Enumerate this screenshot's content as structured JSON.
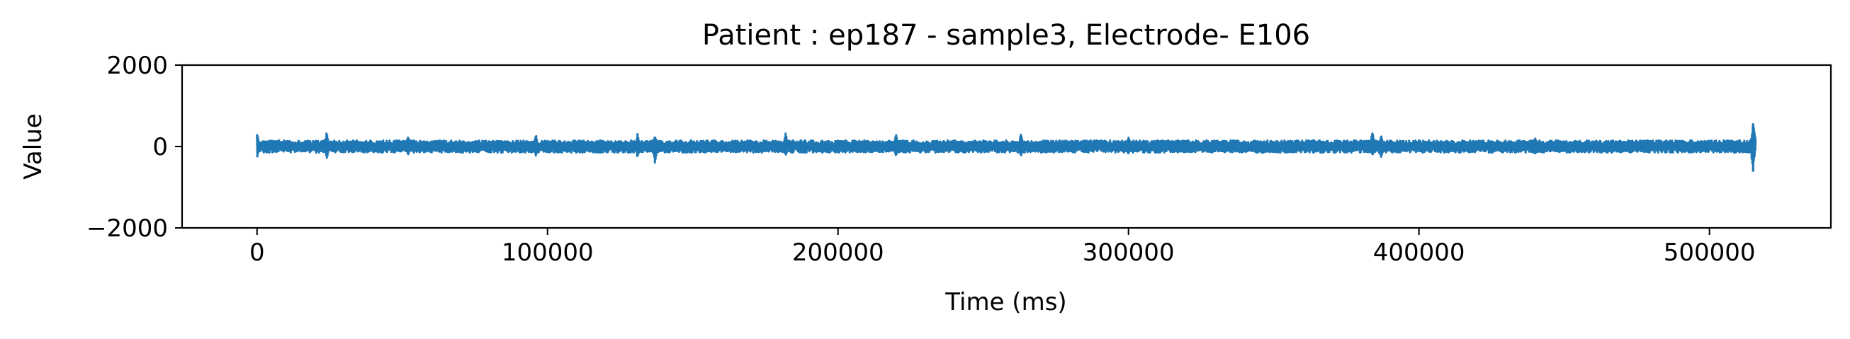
{
  "chart_data": {
    "type": "line",
    "title": "Patient : ep187 - sample3, Electrode- E106",
    "xlabel": "Time (ms)",
    "ylabel": "Value",
    "xlim": [
      -25800,
      541800
    ],
    "ylim": [
      -2000,
      2000
    ],
    "x_ticks": [
      0,
      100000,
      200000,
      300000,
      400000,
      500000
    ],
    "x_tick_labels": [
      "0",
      "100000",
      "200000",
      "300000",
      "400000",
      "500000"
    ],
    "y_ticks": [
      -2000,
      0,
      2000
    ],
    "y_tick_labels": [
      "−2000",
      "0",
      "2000"
    ],
    "grid": false,
    "series": [
      {
        "color": "#1f77b4",
        "x_range": [
          0,
          516000
        ],
        "typical_band": [
          -150,
          150
        ],
        "peaks": [
          {
            "x": 0,
            "max": 380,
            "min": -300
          },
          {
            "x": 24000,
            "max": 360,
            "min": -330
          },
          {
            "x": 52000,
            "max": 260,
            "min": -220
          },
          {
            "x": 96000,
            "max": 300,
            "min": -260
          },
          {
            "x": 131000,
            "max": 330,
            "min": -280
          },
          {
            "x": 137000,
            "max": 280,
            "min": -420
          },
          {
            "x": 182000,
            "max": 340,
            "min": -260
          },
          {
            "x": 220000,
            "max": 320,
            "min": -270
          },
          {
            "x": 263000,
            "max": 350,
            "min": -240
          },
          {
            "x": 300000,
            "max": 260,
            "min": -220
          },
          {
            "x": 384000,
            "max": 390,
            "min": -250
          },
          {
            "x": 387000,
            "max": 300,
            "min": -320
          },
          {
            "x": 440000,
            "max": 240,
            "min": -200
          },
          {
            "x": 515000,
            "max": 550,
            "min": -620
          }
        ]
      }
    ]
  }
}
